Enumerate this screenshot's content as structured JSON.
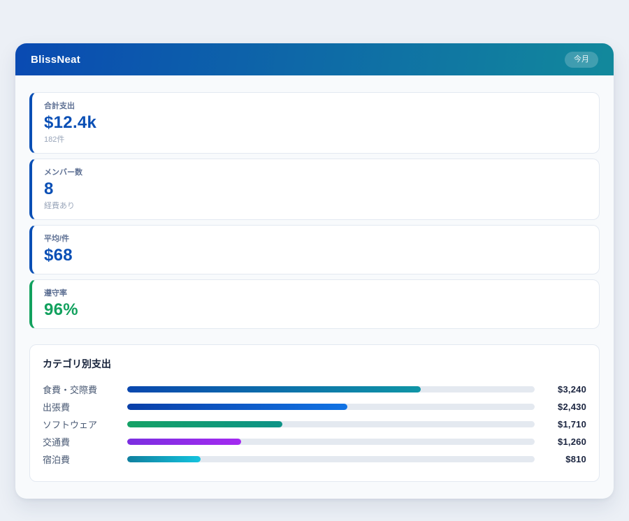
{
  "header": {
    "app_name": "BlissNeat",
    "period_badge": "今月"
  },
  "stats": [
    {
      "label": "合計支出",
      "value": "$12.4k",
      "sub": "182件",
      "accent_color": "#0a4fb5",
      "value_color": "#0a4fb5"
    },
    {
      "label": "メンバー数",
      "value": "8",
      "sub": "経費あり",
      "accent_color": "#0a4fb5",
      "value_color": "#0a4fb5"
    },
    {
      "label": "平均/件",
      "value": "$68",
      "sub": "",
      "accent_color": "#0a4fb5",
      "value_color": "#0a4fb5"
    },
    {
      "label": "遵守率",
      "value": "96%",
      "sub": "",
      "accent_color": "#12a15e",
      "value_color": "#12a15e"
    }
  ],
  "categories": {
    "title": "カテゴリ別支出",
    "rows": [
      {
        "label": "食費・交際費",
        "amount": "$3,240",
        "percent": 72,
        "bar_from": "#0a47ae",
        "bar_to": "#0f95a6"
      },
      {
        "label": "出張費",
        "amount": "$2,430",
        "percent": 54,
        "bar_from": "#0a3fa8",
        "bar_to": "#1173e4"
      },
      {
        "label": "ソフトウェア",
        "amount": "$1,710",
        "percent": 38,
        "bar_from": "#15a266",
        "bar_to": "#0e9387"
      },
      {
        "label": "交通費",
        "amount": "$1,260",
        "percent": 28,
        "bar_from": "#7b2ee0",
        "bar_to": "#a32af0"
      },
      {
        "label": "宿泊費",
        "amount": "$810",
        "percent": 18,
        "bar_from": "#10809f",
        "bar_to": "#14c3de"
      }
    ]
  },
  "chart_data": {
    "type": "bar",
    "orientation": "horizontal",
    "title": "カテゴリ別支出",
    "categories": [
      "食費・交際費",
      "出張費",
      "ソフトウェア",
      "交通費",
      "宿泊費"
    ],
    "values": [
      3240,
      2430,
      1710,
      1260,
      810
    ],
    "value_labels": [
      "$3,240",
      "$2,430",
      "$1,710",
      "$1,260",
      "$810"
    ],
    "fill_percent": [
      72,
      54,
      38,
      28,
      18
    ],
    "legend": false,
    "grid": false
  },
  "colors": {
    "page_bg": "#ecf0f6",
    "panel_bg": "#f8fafc",
    "header_from": "#0a4ab2",
    "header_to": "#12899c",
    "accent_blue": "#0a4fb5",
    "accent_green": "#12a15e",
    "bar_track": "#e4e9f0",
    "amount_text": "#1b2540"
  }
}
